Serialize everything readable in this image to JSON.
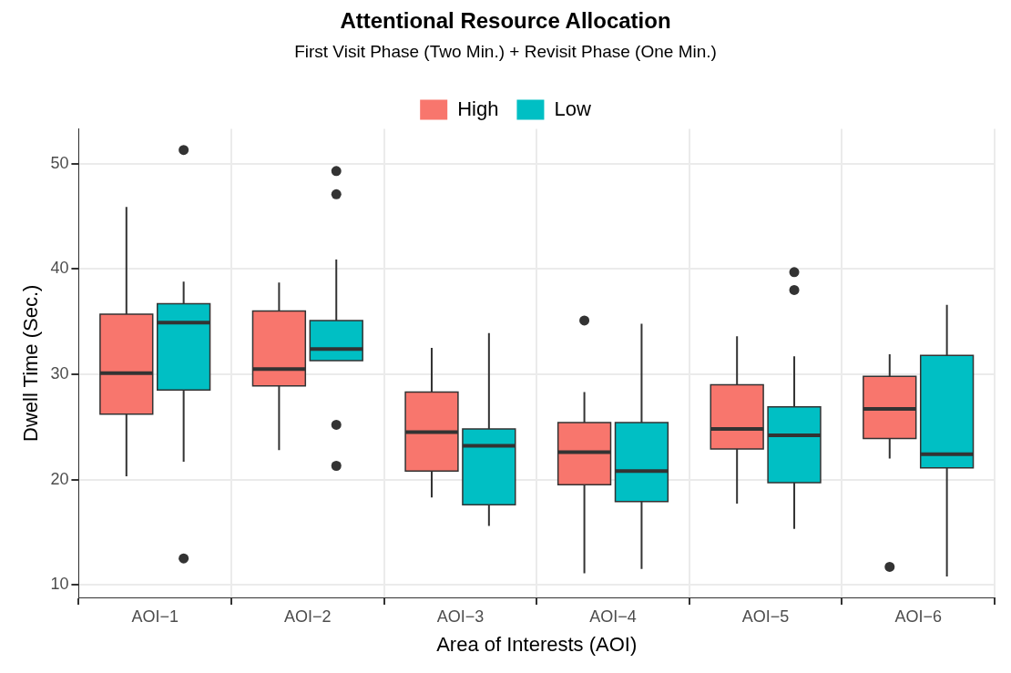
{
  "chart_data": {
    "type": "box",
    "title": "Attentional Resource Allocation",
    "subtitle": "First Visit Phase (Two Min.) + Revisit Phase (One Min.)",
    "xlabel": "Area of Interests (AOI)",
    "ylabel": "Dwell Time (Sec.)",
    "categories": [
      "AOI−1",
      "AOI−2",
      "AOI−3",
      "AOI−4",
      "AOI−5",
      "AOI−6"
    ],
    "series": [
      {
        "name": "High",
        "color": "#f8766d",
        "boxes": [
          {
            "low": 20.3,
            "q1": 26.2,
            "median": 30.1,
            "q3": 35.7,
            "high": 45.9
          },
          {
            "low": 22.8,
            "q1": 28.9,
            "median": 30.5,
            "q3": 36.0,
            "high": 38.7
          },
          {
            "low": 18.3,
            "q1": 20.8,
            "median": 24.5,
            "q3": 28.3,
            "high": 32.5
          },
          {
            "low": 11.1,
            "q1": 19.5,
            "median": 22.6,
            "q3": 25.4,
            "high": 28.3,
            "outliers": [
              35.1
            ]
          },
          {
            "low": 17.7,
            "q1": 22.9,
            "median": 24.8,
            "q3": 29.0,
            "high": 33.6
          },
          {
            "low": 22.0,
            "q1": 23.9,
            "median": 26.7,
            "q3": 29.8,
            "high": 31.9,
            "outliers": [
              11.7
            ]
          }
        ]
      },
      {
        "name": "Low",
        "color": "#00bfc4",
        "boxes": [
          {
            "low": 21.7,
            "q1": 28.5,
            "median": 34.9,
            "q3": 36.7,
            "high": 38.8,
            "outliers": [
              51.3,
              12.5
            ]
          },
          {
            "low": 31.3,
            "q1": 31.3,
            "median": 32.4,
            "q3": 35.1,
            "high": 40.9,
            "outliers": [
              49.3,
              47.1,
              25.2,
              21.3
            ]
          },
          {
            "low": 15.6,
            "q1": 17.6,
            "median": 23.2,
            "q3": 24.8,
            "high": 33.9
          },
          {
            "low": 11.5,
            "q1": 17.9,
            "median": 20.8,
            "q3": 25.4,
            "high": 34.8
          },
          {
            "low": 15.3,
            "q1": 19.7,
            "median": 24.2,
            "q3": 26.9,
            "high": 31.7,
            "outliers": [
              39.7,
              38.0
            ]
          },
          {
            "low": 10.8,
            "q1": 21.1,
            "median": 22.4,
            "q3": 31.8,
            "high": 36.6
          }
        ]
      }
    ],
    "ylim": [
      8.8,
      53.3
    ],
    "yticks": [
      10,
      20,
      30,
      40,
      50
    ],
    "grid": true,
    "legend": "top"
  }
}
